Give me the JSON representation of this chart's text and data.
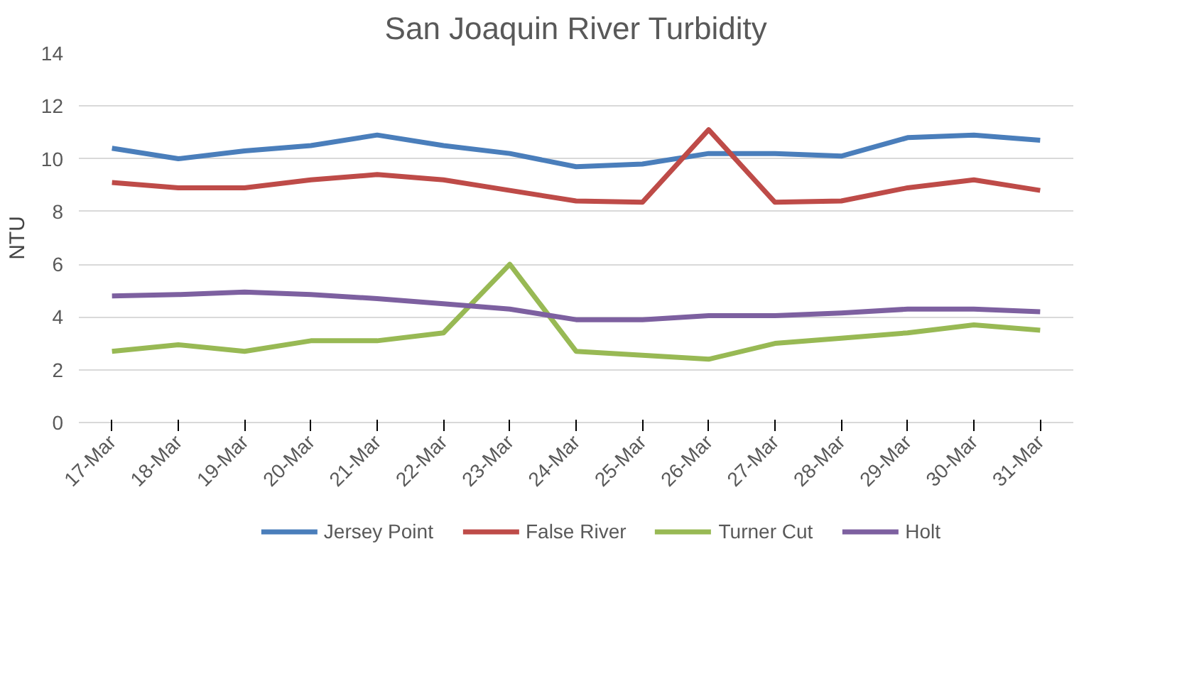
{
  "chart_data": {
    "type": "line",
    "title": "San Joaquin River Turbidity",
    "ylabel": "NTU",
    "categories": [
      "17-Mar",
      "18-Mar",
      "19-Mar",
      "20-Mar",
      "21-Mar",
      "22-Mar",
      "23-Mar",
      "24-Mar",
      "25-Mar",
      "26-Mar",
      "27-Mar",
      "28-Mar",
      "29-Mar",
      "30-Mar",
      "31-Mar"
    ],
    "series": [
      {
        "name": "Jersey Point",
        "color": "#4a7ebb",
        "values": [
          10.4,
          10.0,
          10.3,
          10.5,
          10.9,
          10.5,
          10.2,
          9.7,
          9.8,
          10.2,
          10.2,
          10.1,
          10.8,
          10.9,
          10.7
        ]
      },
      {
        "name": "False River",
        "color": "#be4b48",
        "values": [
          9.1,
          8.9,
          8.9,
          9.2,
          9.4,
          9.2,
          8.8,
          8.4,
          8.35,
          11.1,
          8.35,
          8.4,
          8.9,
          9.2,
          8.8
        ]
      },
      {
        "name": "Turner Cut",
        "color": "#98b954",
        "values": [
          2.7,
          2.95,
          2.7,
          3.1,
          3.1,
          3.4,
          6.0,
          2.7,
          2.55,
          2.4,
          3.0,
          3.2,
          3.4,
          3.7,
          3.5
        ]
      },
      {
        "name": "Holt",
        "color": "#7d60a0",
        "values": [
          4.8,
          4.85,
          4.95,
          4.85,
          4.7,
          4.5,
          4.3,
          3.9,
          3.9,
          4.05,
          4.05,
          4.15,
          4.3,
          4.3,
          4.2
        ]
      }
    ],
    "ylim": [
      0,
      14
    ],
    "yticks": [
      0,
      2,
      4,
      6,
      8,
      10,
      12,
      14
    ],
    "grid": "y",
    "legend": "bottom",
    "marker": "none",
    "line_style": "solid"
  }
}
